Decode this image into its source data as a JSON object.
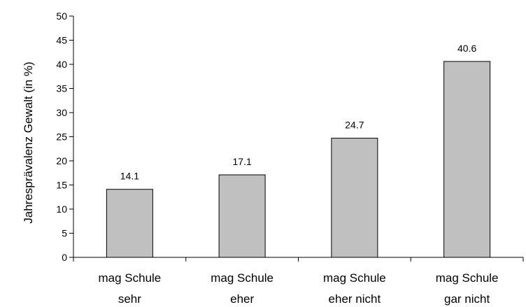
{
  "chart_data": {
    "type": "bar",
    "title": "",
    "xlabel": "",
    "ylabel": "Jahresprävalenz Gewalt (in %)",
    "categories": [
      [
        "mag Schule",
        "sehr"
      ],
      [
        "mag Schule",
        "eher"
      ],
      [
        "mag Schule",
        "eher nicht"
      ],
      [
        "mag Schule",
        "gar nicht"
      ]
    ],
    "values": [
      14.1,
      17.1,
      24.7,
      40.6
    ],
    "data_labels": [
      "14.1",
      "17.1",
      "24.7",
      "40.6"
    ],
    "ylim": [
      0,
      50
    ],
    "yticks": [
      0,
      5,
      10,
      15,
      20,
      25,
      30,
      35,
      40,
      45,
      50
    ],
    "grid": false,
    "legend": "none",
    "bar_color": "#c0c0c0",
    "bar_edge_color": "#000000"
  }
}
